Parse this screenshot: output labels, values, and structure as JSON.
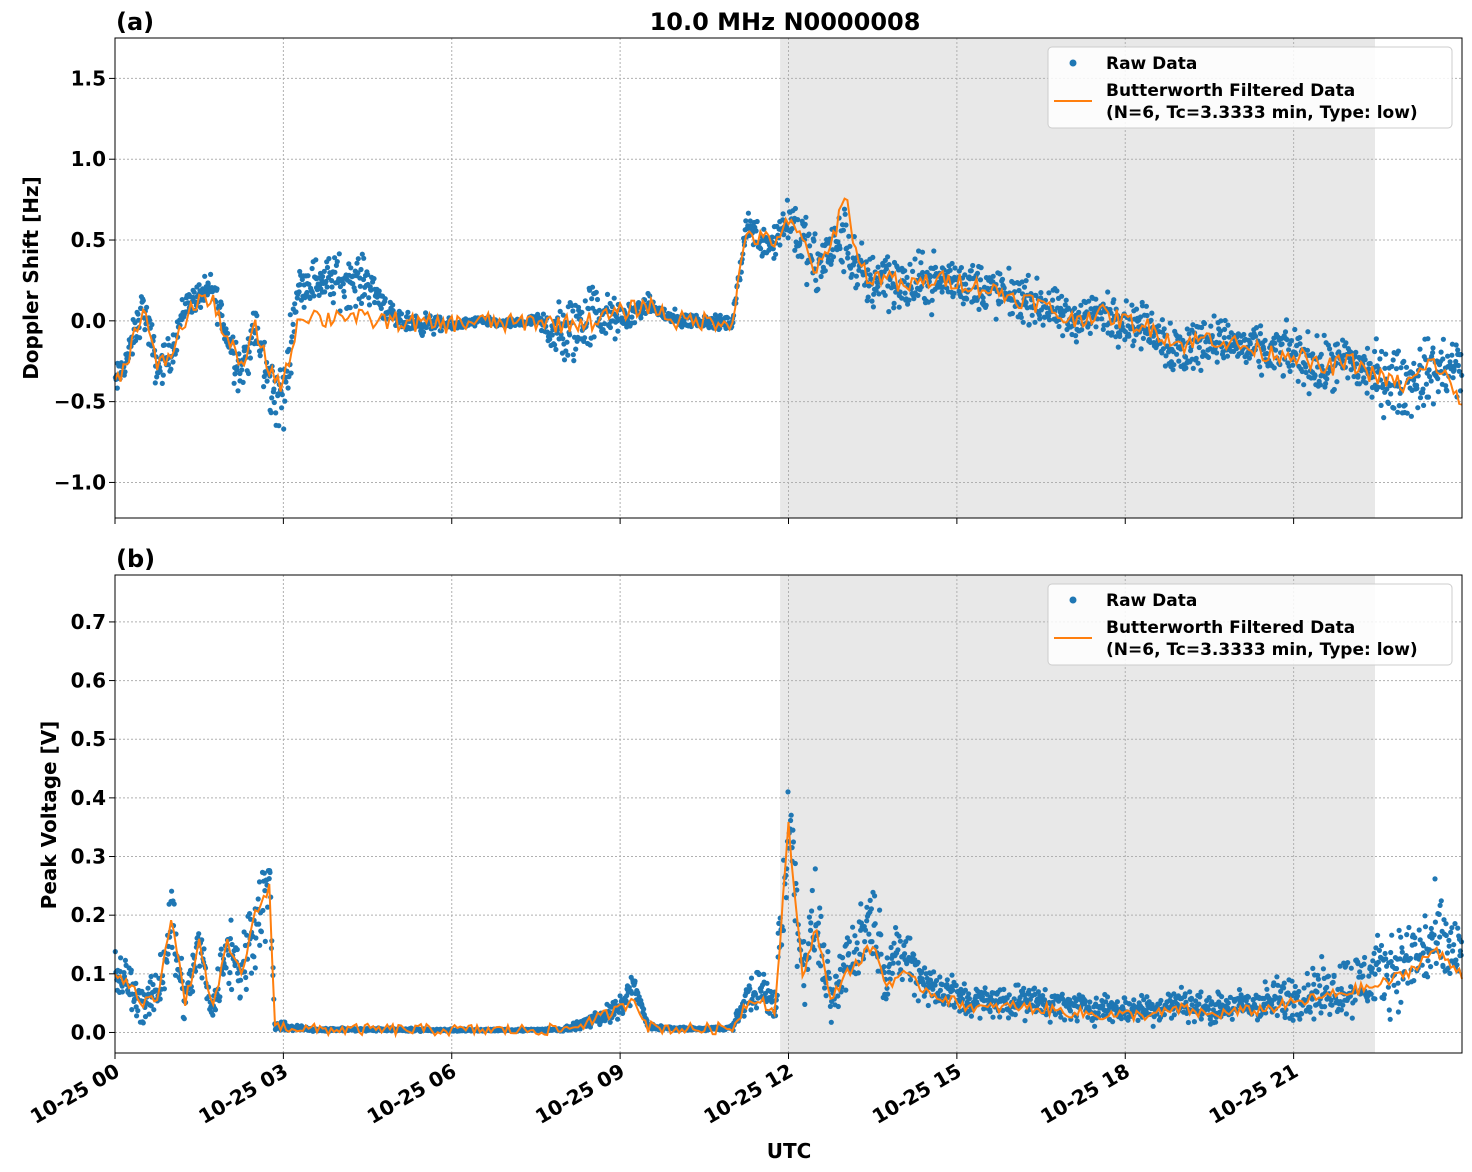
{
  "chart_data": [
    {
      "panel_label": "(a)",
      "title": "10.0 MHz N0000008",
      "type": "scatter",
      "ylabel": "Doppler Shift [Hz]",
      "ylim": [
        -1.22,
        1.75
      ],
      "xlim": [
        0,
        24
      ],
      "yticks": [
        -1.0,
        -0.5,
        0.0,
        0.5,
        1.0,
        1.5
      ],
      "ytick_labels": [
        "−1.0",
        "−0.5",
        "0.0",
        "0.5",
        "1.0",
        "1.5"
      ],
      "grid": true,
      "legend_position": "top-right",
      "shaded_region": [
        11.85,
        22.45
      ],
      "series": [
        {
          "name": "Raw Data",
          "style": "points",
          "color": "#1f77b4",
          "x": [
            0.0,
            0.25,
            0.5,
            0.75,
            1.0,
            1.25,
            1.5,
            1.75,
            2.0,
            2.25,
            2.5,
            2.75,
            3.0,
            3.25,
            3.5,
            3.75,
            4.0,
            4.5,
            5.0,
            5.5,
            6.0,
            6.5,
            7.0,
            7.5,
            8.0,
            8.5,
            9.0,
            9.5,
            10.0,
            10.5,
            11.0,
            11.25,
            11.5,
            11.75,
            12.0,
            12.25,
            12.5,
            12.75,
            13.0,
            13.25,
            13.5,
            13.75,
            14.0,
            14.5,
            15.0,
            15.5,
            16.0,
            16.5,
            17.0,
            17.5,
            18.0,
            18.5,
            19.0,
            19.5,
            20.0,
            20.5,
            21.0,
            21.5,
            22.0,
            22.5,
            23.0,
            23.5,
            24.0
          ],
          "y": [
            -0.4,
            -0.2,
            0.1,
            -0.3,
            -0.2,
            0.1,
            0.15,
            0.2,
            -0.1,
            -0.3,
            -0.05,
            -0.4,
            -0.5,
            0.2,
            0.25,
            0.25,
            0.25,
            0.25,
            0.0,
            -0.02,
            -0.03,
            0.0,
            -0.02,
            0.0,
            -0.1,
            0.05,
            0.0,
            0.1,
            0.0,
            0.0,
            -0.02,
            0.6,
            0.5,
            0.5,
            0.65,
            0.5,
            0.3,
            0.45,
            0.5,
            0.3,
            0.25,
            0.3,
            0.2,
            0.25,
            0.25,
            0.2,
            0.15,
            0.1,
            0.0,
            0.05,
            0.0,
            -0.05,
            -0.2,
            -0.1,
            -0.15,
            -0.2,
            -0.2,
            -0.3,
            -0.25,
            -0.35,
            -0.4,
            -0.3,
            -0.3
          ],
          "spread": [
            0.15,
            0.15,
            0.18,
            0.2,
            0.15,
            0.15,
            0.12,
            0.15,
            0.2,
            0.25,
            0.2,
            0.3,
            0.35,
            0.15,
            0.2,
            0.2,
            0.25,
            0.2,
            0.08,
            0.1,
            0.05,
            0.04,
            0.04,
            0.05,
            0.35,
            0.3,
            0.15,
            0.08,
            0.08,
            0.06,
            0.06,
            0.15,
            0.15,
            0.2,
            0.25,
            0.3,
            0.3,
            0.25,
            0.3,
            0.25,
            0.3,
            0.3,
            0.25,
            0.25,
            0.2,
            0.25,
            0.2,
            0.2,
            0.2,
            0.2,
            0.2,
            0.2,
            0.3,
            0.2,
            0.2,
            0.2,
            0.25,
            0.25,
            0.25,
            0.3,
            0.3,
            0.3,
            0.3
          ]
        },
        {
          "name": "Butterworth Filtered Data\n(N=6, Tc=3.3333 min, Type: low)",
          "style": "line",
          "color": "#ff7f0e",
          "x": [
            0.0,
            0.25,
            0.5,
            0.75,
            1.0,
            1.25,
            1.5,
            1.75,
            2.0,
            2.25,
            2.5,
            2.75,
            3.0,
            3.25,
            3.5,
            3.75,
            4.0,
            4.5,
            5.0,
            5.5,
            6.0,
            6.5,
            7.0,
            7.5,
            8.0,
            8.5,
            9.0,
            9.5,
            10.0,
            10.5,
            11.0,
            11.25,
            11.5,
            11.75,
            12.0,
            12.25,
            12.5,
            12.75,
            13.0,
            13.25,
            13.5,
            13.75,
            14.0,
            14.5,
            15.0,
            15.5,
            16.0,
            16.5,
            17.0,
            17.5,
            18.0,
            18.5,
            19.0,
            19.5,
            20.0,
            20.5,
            21.0,
            21.5,
            22.0,
            22.5,
            23.0,
            23.5,
            24.0
          ],
          "y": [
            -0.4,
            -0.2,
            0.1,
            -0.3,
            -0.2,
            0.0,
            0.15,
            0.1,
            -0.1,
            -0.3,
            -0.05,
            -0.3,
            -0.4,
            0.0,
            0.05,
            0.0,
            0.05,
            0.0,
            0.0,
            -0.02,
            -0.02,
            0.0,
            -0.02,
            0.0,
            -0.02,
            0.0,
            0.05,
            0.1,
            0.0,
            0.0,
            0.0,
            0.55,
            0.5,
            0.5,
            0.6,
            0.5,
            0.3,
            0.45,
            0.8,
            0.35,
            0.25,
            0.3,
            0.2,
            0.25,
            0.25,
            0.2,
            0.15,
            0.1,
            0.0,
            0.05,
            0.0,
            -0.05,
            -0.15,
            -0.1,
            -0.15,
            -0.2,
            -0.2,
            -0.3,
            -0.25,
            -0.35,
            -0.4,
            -0.25,
            -0.5
          ]
        }
      ]
    },
    {
      "panel_label": "(b)",
      "type": "scatter",
      "xlabel": "UTC",
      "ylabel": "Peak Voltage [V]",
      "ylim": [
        -0.035,
        0.78
      ],
      "xlim": [
        0,
        24
      ],
      "yticks": [
        0.0,
        0.1,
        0.2,
        0.3,
        0.4,
        0.5,
        0.6,
        0.7
      ],
      "ytick_labels": [
        "0.0",
        "0.1",
        "0.2",
        "0.3",
        "0.4",
        "0.5",
        "0.6",
        "0.7"
      ],
      "xticks": [
        0,
        3,
        6,
        9,
        12,
        15,
        18,
        21
      ],
      "xtick_labels": [
        "10-25 00",
        "10-25 03",
        "10-25 06",
        "10-25 09",
        "10-25 12",
        "10-25 15",
        "10-25 18",
        "10-25 21"
      ],
      "grid": true,
      "legend_position": "top-right",
      "shaded_region": [
        11.85,
        22.45
      ],
      "series": [
        {
          "name": "Raw Data",
          "style": "points",
          "color": "#1f77b4",
          "x": [
            0.0,
            0.25,
            0.5,
            0.75,
            1.0,
            1.25,
            1.5,
            1.75,
            2.0,
            2.25,
            2.5,
            2.75,
            2.85,
            3.0,
            3.5,
            4.0,
            5.0,
            6.0,
            7.0,
            8.0,
            8.5,
            9.0,
            9.25,
            9.5,
            10.0,
            10.5,
            11.0,
            11.25,
            11.5,
            11.75,
            12.0,
            12.25,
            12.5,
            12.75,
            13.0,
            13.25,
            13.5,
            13.75,
            14.0,
            14.5,
            15.0,
            15.5,
            16.0,
            16.5,
            17.0,
            17.5,
            18.0,
            18.5,
            19.0,
            19.5,
            20.0,
            20.5,
            21.0,
            21.5,
            22.0,
            22.5,
            23.0,
            23.5,
            24.0
          ],
          "y": [
            0.1,
            0.08,
            0.05,
            0.06,
            0.2,
            0.05,
            0.15,
            0.04,
            0.15,
            0.1,
            0.2,
            0.25,
            0.01,
            0.01,
            0.005,
            0.005,
            0.005,
            0.004,
            0.004,
            0.005,
            0.02,
            0.04,
            0.08,
            0.01,
            0.006,
            0.006,
            0.008,
            0.06,
            0.08,
            0.04,
            0.35,
            0.12,
            0.2,
            0.05,
            0.12,
            0.15,
            0.2,
            0.1,
            0.14,
            0.08,
            0.06,
            0.05,
            0.055,
            0.05,
            0.045,
            0.04,
            0.04,
            0.04,
            0.05,
            0.04,
            0.045,
            0.05,
            0.06,
            0.07,
            0.08,
            0.1,
            0.12,
            0.15,
            0.13
          ],
          "spread": [
            0.07,
            0.06,
            0.05,
            0.05,
            0.12,
            0.05,
            0.07,
            0.04,
            0.1,
            0.1,
            0.12,
            0.1,
            0.01,
            0.01,
            0.004,
            0.004,
            0.004,
            0.003,
            0.003,
            0.004,
            0.015,
            0.03,
            0.03,
            0.008,
            0.004,
            0.004,
            0.006,
            0.04,
            0.05,
            0.05,
            0.2,
            0.1,
            0.1,
            0.06,
            0.1,
            0.08,
            0.1,
            0.07,
            0.07,
            0.06,
            0.05,
            0.04,
            0.04,
            0.04,
            0.035,
            0.035,
            0.035,
            0.035,
            0.04,
            0.035,
            0.04,
            0.05,
            0.06,
            0.07,
            0.08,
            0.09,
            0.1,
            0.12,
            0.1
          ]
        },
        {
          "name": "Butterworth Filtered Data\n(N=6, Tc=3.3333 min, Type: low)",
          "style": "line",
          "color": "#ff7f0e",
          "x": [
            0.0,
            0.25,
            0.5,
            0.75,
            1.0,
            1.25,
            1.5,
            1.75,
            2.0,
            2.25,
            2.5,
            2.75,
            2.85,
            3.0,
            3.5,
            4.0,
            5.0,
            6.0,
            7.0,
            8.0,
            8.5,
            9.0,
            9.25,
            9.5,
            10.0,
            10.5,
            11.0,
            11.25,
            11.5,
            11.75,
            12.0,
            12.25,
            12.5,
            12.75,
            13.0,
            13.25,
            13.5,
            13.75,
            14.0,
            14.5,
            15.0,
            15.5,
            16.0,
            16.5,
            17.0,
            17.5,
            18.0,
            18.5,
            19.0,
            19.5,
            20.0,
            20.5,
            21.0,
            21.5,
            22.0,
            22.5,
            23.0,
            23.5,
            24.0
          ],
          "y": [
            0.1,
            0.08,
            0.05,
            0.06,
            0.2,
            0.05,
            0.15,
            0.04,
            0.15,
            0.1,
            0.2,
            0.25,
            0.01,
            0.01,
            0.005,
            0.005,
            0.005,
            0.004,
            0.004,
            0.005,
            0.02,
            0.04,
            0.06,
            0.01,
            0.006,
            0.006,
            0.008,
            0.05,
            0.06,
            0.03,
            0.35,
            0.1,
            0.18,
            0.05,
            0.1,
            0.12,
            0.15,
            0.08,
            0.1,
            0.07,
            0.05,
            0.04,
            0.045,
            0.04,
            0.035,
            0.03,
            0.03,
            0.03,
            0.04,
            0.03,
            0.035,
            0.04,
            0.05,
            0.06,
            0.07,
            0.08,
            0.1,
            0.14,
            0.1
          ]
        }
      ]
    }
  ]
}
